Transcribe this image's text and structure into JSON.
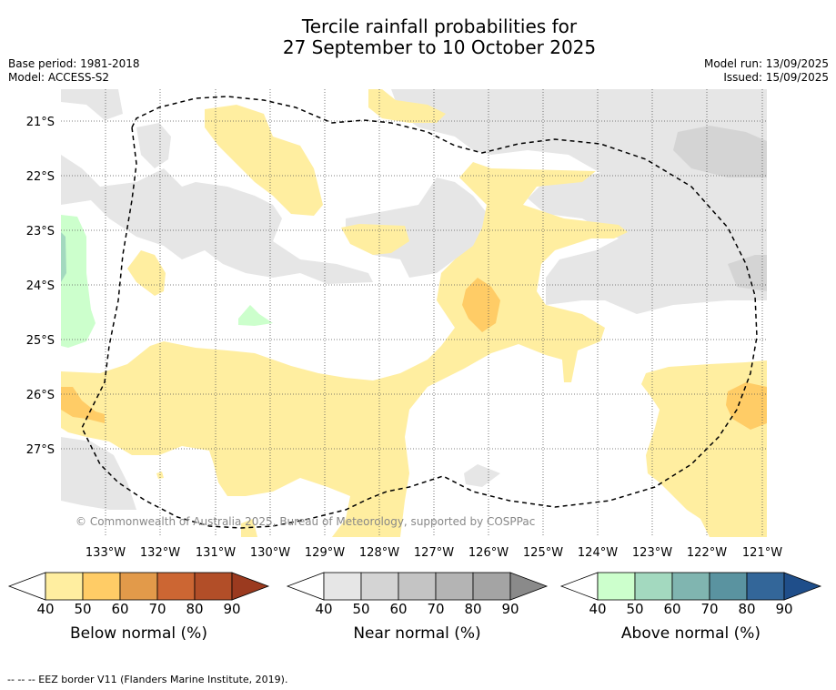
{
  "title_line1": "Tercile rainfall probabilities for",
  "title_line2": "27 September to 10 October 2025",
  "base_period": "Base period: 1981-2018",
  "model": "Model: ACCESS-S2",
  "model_run": "Model run: 13/09/2025",
  "issued": "Issued: 15/09/2025",
  "copyright": "© Commonwealth of Australia 2025, Bureau of Meteorology, supported by COSPPac",
  "footer": "-- -- -- EEZ border V11 (Flanders Marine Institute, 2019).",
  "lat_labels": [
    "21°S",
    "22°S",
    "23°S",
    "24°S",
    "25°S",
    "26°S",
    "27°S"
  ],
  "lon_labels": [
    "133°W",
    "132°W",
    "131°W",
    "130°W",
    "129°W",
    "128°W",
    "127°W",
    "126°W",
    "125°W",
    "124°W",
    "123°W",
    "122°W",
    "121°W"
  ],
  "colorbars": [
    {
      "label": "Below normal (%)",
      "ticks": [
        "40",
        "50",
        "60",
        "70",
        "80",
        "90"
      ],
      "colors": [
        "#ffffff",
        "#ffeea0",
        "#ffcc66",
        "#e29a4a",
        "#cc6633",
        "#b24e28",
        "#9b3a1f"
      ]
    },
    {
      "label": "Near normal (%)",
      "ticks": [
        "40",
        "50",
        "60",
        "70",
        "80",
        "90"
      ],
      "colors": [
        "#ffffff",
        "#e6e6e6",
        "#d4d4d4",
        "#c4c4c4",
        "#b4b4b4",
        "#a4a4a4",
        "#8a8a8a"
      ]
    },
    {
      "label": "Above normal (%)",
      "ticks": [
        "40",
        "50",
        "60",
        "70",
        "80",
        "90"
      ],
      "colors": [
        "#ffffff",
        "#ccffcc",
        "#a3d9bf",
        "#80b5b0",
        "#5a93a0",
        "#336699",
        "#1f4e8a"
      ]
    }
  ],
  "colors": {
    "below_50": "#ffeea0",
    "below_60": "#ffcc66",
    "near_50": "#e6e6e6",
    "near_60": "#d4d4d4",
    "above_50": "#ccffcc",
    "above_60": "#a3d9bf"
  }
}
